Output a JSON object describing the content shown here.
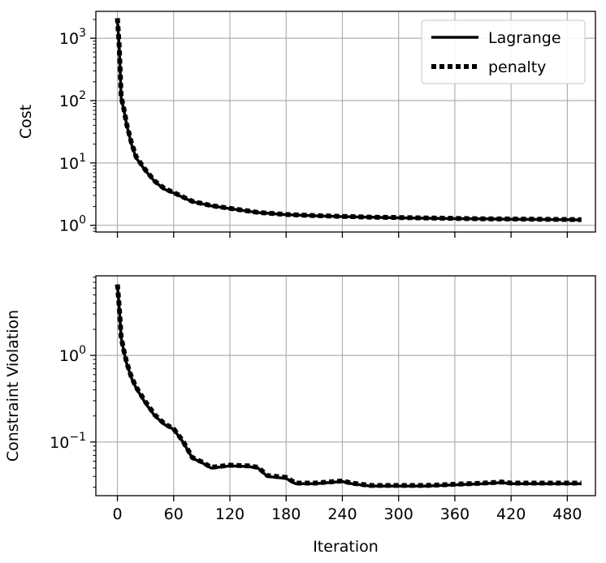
{
  "chart_data": [
    {
      "type": "line",
      "ylabel": "Cost",
      "xlabel": "",
      "yscale": "log",
      "xlim": [
        -23,
        510
      ],
      "ylim": [
        0.78,
        2700
      ],
      "yticks": [
        1,
        10,
        100,
        1000
      ],
      "ytick_labels": [
        {
          "base": "10",
          "exp": "0"
        },
        {
          "base": "10",
          "exp": "1"
        },
        {
          "base": "10",
          "exp": "2"
        },
        {
          "base": "10",
          "exp": "3"
        }
      ],
      "xticks": [
        0,
        60,
        120,
        180,
        240,
        300,
        360,
        420,
        480
      ],
      "show_xtick_labels": false,
      "grid": true,
      "legend_position": "top-right",
      "series": [
        {
          "name": "Lagrange",
          "style": "solid",
          "x": [
            0,
            2,
            4,
            7,
            10,
            15,
            20,
            30,
            40,
            50,
            60,
            70,
            80,
            100,
            120,
            150,
            180,
            210,
            240,
            270,
            300,
            330,
            360,
            390,
            420,
            450,
            480,
            495
          ],
          "y": [
            2000,
            700,
            110,
            70,
            40,
            20,
            12,
            7.5,
            5,
            3.8,
            3.3,
            2.8,
            2.4,
            2.05,
            1.85,
            1.6,
            1.48,
            1.42,
            1.38,
            1.35,
            1.32,
            1.3,
            1.28,
            1.27,
            1.25,
            1.24,
            1.23,
            1.22
          ]
        },
        {
          "name": "penalty",
          "style": "dotted",
          "x": [
            0,
            2,
            4,
            7,
            10,
            15,
            20,
            30,
            40,
            50,
            60,
            70,
            80,
            100,
            120,
            150,
            180,
            210,
            240,
            270,
            300,
            330,
            360,
            390,
            420,
            450,
            480,
            495
          ],
          "y": [
            2100,
            720,
            115,
            72,
            41,
            21,
            12.5,
            7.7,
            5.1,
            3.9,
            3.35,
            2.85,
            2.42,
            2.07,
            1.87,
            1.61,
            1.49,
            1.43,
            1.39,
            1.35,
            1.33,
            1.31,
            1.29,
            1.27,
            1.26,
            1.25,
            1.24,
            1.23
          ]
        }
      ]
    },
    {
      "type": "line",
      "ylabel": "Constraint Violation",
      "xlabel": "Iteration",
      "yscale": "log",
      "xlim": [
        -23,
        510
      ],
      "ylim": [
        0.024,
        8.3
      ],
      "yticks": [
        0.1,
        1
      ],
      "ytick_labels": [
        {
          "base": "10",
          "exp": "−1"
        },
        {
          "base": "10",
          "exp": "0"
        }
      ],
      "xticks": [
        0,
        60,
        120,
        180,
        240,
        300,
        360,
        420,
        480
      ],
      "xtick_labels": [
        "0",
        "60",
        "120",
        "180",
        "240",
        "300",
        "360",
        "420",
        "480"
      ],
      "grid": true,
      "series": [
        {
          "name": "Lagrange",
          "style": "solid",
          "x": [
            0,
            2,
            4,
            7,
            10,
            15,
            20,
            30,
            40,
            50,
            60,
            70,
            80,
            90,
            100,
            120,
            140,
            150,
            160,
            180,
            190,
            210,
            240,
            250,
            270,
            300,
            330,
            360,
            390,
            410,
            420,
            450,
            480,
            495
          ],
          "y": [
            6.5,
            3.5,
            1.6,
            1.1,
            0.8,
            0.55,
            0.42,
            0.28,
            0.2,
            0.16,
            0.14,
            0.1,
            0.065,
            0.058,
            0.05,
            0.053,
            0.052,
            0.05,
            0.04,
            0.038,
            0.033,
            0.033,
            0.035,
            0.033,
            0.031,
            0.031,
            0.031,
            0.032,
            0.033,
            0.034,
            0.033,
            0.033,
            0.033,
            0.033
          ]
        },
        {
          "name": "penalty",
          "style": "dotted",
          "x": [
            0,
            2,
            4,
            7,
            10,
            15,
            20,
            30,
            40,
            50,
            60,
            70,
            80,
            90,
            100,
            120,
            140,
            150,
            160,
            180,
            190,
            210,
            240,
            250,
            270,
            300,
            330,
            360,
            390,
            410,
            420,
            450,
            480,
            495
          ],
          "y": [
            6.6,
            3.6,
            1.62,
            1.12,
            0.82,
            0.56,
            0.43,
            0.29,
            0.205,
            0.163,
            0.142,
            0.102,
            0.066,
            0.059,
            0.051,
            0.054,
            0.053,
            0.051,
            0.041,
            0.039,
            0.0335,
            0.0335,
            0.0355,
            0.0335,
            0.0315,
            0.0315,
            0.0315,
            0.0325,
            0.0335,
            0.0345,
            0.0335,
            0.0335,
            0.0335,
            0.0335
          ]
        }
      ]
    }
  ]
}
